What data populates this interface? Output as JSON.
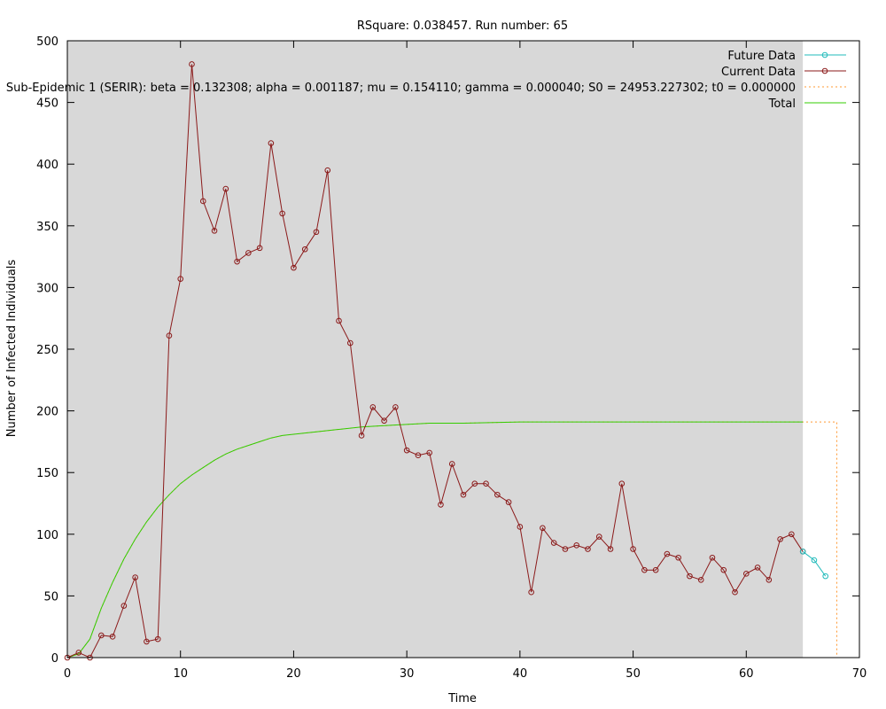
{
  "chart_data": {
    "type": "line",
    "title": "RSquare: 0.038457. Run number: 65",
    "xlabel": "Time",
    "ylabel": "Number of Infected Individuals",
    "xlim": [
      0,
      70
    ],
    "ylim": [
      0,
      500
    ],
    "xticks": [
      0,
      10,
      20,
      30,
      40,
      50,
      60,
      70
    ],
    "yticks": [
      0,
      50,
      100,
      150,
      200,
      250,
      300,
      350,
      400,
      450,
      500
    ],
    "grid": false,
    "legend_position": "top-right",
    "shaded_region": {
      "x": [
        0,
        65
      ],
      "color": "#d8d8d8"
    },
    "series": [
      {
        "name": "Future Data",
        "color": "#22bbbb",
        "marker": "circle",
        "x": [
          65,
          66,
          67
        ],
        "y": [
          86,
          79,
          66
        ]
      },
      {
        "name": "Current Data",
        "color": "#8b1a1a",
        "marker": "circle",
        "x": [
          0,
          1,
          2,
          3,
          4,
          5,
          6,
          7,
          8,
          9,
          10,
          11,
          12,
          13,
          14,
          15,
          16,
          17,
          18,
          19,
          20,
          21,
          22,
          23,
          24,
          25,
          26,
          27,
          28,
          29,
          30,
          31,
          32,
          33,
          34,
          35,
          36,
          37,
          38,
          39,
          40,
          41,
          42,
          43,
          44,
          45,
          46,
          47,
          48,
          49,
          50,
          51,
          52,
          53,
          54,
          55,
          56,
          57,
          58,
          59,
          60,
          61,
          62,
          63,
          64,
          65
        ],
        "y": [
          0,
          4,
          0,
          18,
          17,
          42,
          65,
          13,
          15,
          261,
          307,
          481,
          370,
          346,
          380,
          321,
          328,
          332,
          417,
          360,
          316,
          331,
          345,
          395,
          273,
          255,
          180,
          203,
          192,
          203,
          168,
          164,
          166,
          124,
          157,
          132,
          141,
          141,
          132,
          126,
          106,
          53,
          105,
          93,
          88,
          91,
          88,
          98,
          88,
          141,
          88,
          71,
          71,
          84,
          81,
          66,
          63,
          81,
          71,
          53,
          68,
          73,
          63,
          96,
          100,
          86
        ]
      },
      {
        "name": "Sub-Epidemic 1 (SERIR): beta = 0.132308; alpha = 0.001187; mu = 0.154110; gamma = 0.000040; S0 = 24953.227302; t0 = 0.000000",
        "color": "#ff9933",
        "dashed": true,
        "x": [
          0,
          1,
          2,
          3,
          4,
          5,
          6,
          7,
          8,
          9,
          10,
          11,
          12,
          13,
          14,
          15,
          16,
          17,
          18,
          19,
          20,
          22,
          24,
          26,
          28,
          30,
          32,
          35,
          40,
          45,
          50,
          55,
          60,
          65,
          68,
          68
        ],
        "y": [
          0,
          3,
          15,
          40,
          61,
          80,
          96,
          110,
          122,
          132,
          141,
          148,
          154,
          160,
          165,
          169,
          172,
          175,
          178,
          180,
          181,
          183,
          185,
          187,
          188,
          189,
          190,
          190,
          191,
          191,
          191,
          191,
          191,
          191,
          191,
          0
        ]
      },
      {
        "name": "Total",
        "color": "#33cc00",
        "x": [
          0,
          1,
          2,
          3,
          4,
          5,
          6,
          7,
          8,
          9,
          10,
          11,
          12,
          13,
          14,
          15,
          16,
          17,
          18,
          19,
          20,
          22,
          24,
          26,
          28,
          30,
          32,
          35,
          40,
          45,
          50,
          55,
          60,
          65
        ],
        "y": [
          0,
          3,
          15,
          40,
          61,
          80,
          96,
          110,
          122,
          132,
          141,
          148,
          154,
          160,
          165,
          169,
          172,
          175,
          178,
          180,
          181,
          183,
          185,
          187,
          188,
          189,
          190,
          190,
          191,
          191,
          191,
          191,
          191,
          191
        ]
      }
    ]
  }
}
